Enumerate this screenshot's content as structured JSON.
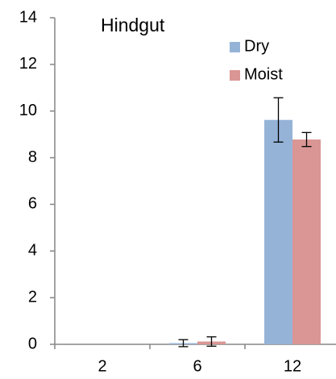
{
  "chart_data": {
    "type": "bar",
    "title": "Hindgut",
    "categories": [
      "2",
      "6",
      "12"
    ],
    "series": [
      {
        "name": "Dry",
        "color": "#95b3d7",
        "values": [
          0,
          0.05,
          9.62
        ],
        "errors": [
          null,
          0.15,
          0.95
        ]
      },
      {
        "name": "Moist",
        "color": "#d99694",
        "values": [
          0,
          0.12,
          8.78
        ],
        "errors": [
          null,
          0.2,
          0.3
        ]
      }
    ],
    "ylim": [
      0,
      14
    ],
    "yticks": [
      0,
      2,
      4,
      6,
      8,
      10,
      12,
      14
    ],
    "grid": false,
    "legend": "upper right"
  }
}
